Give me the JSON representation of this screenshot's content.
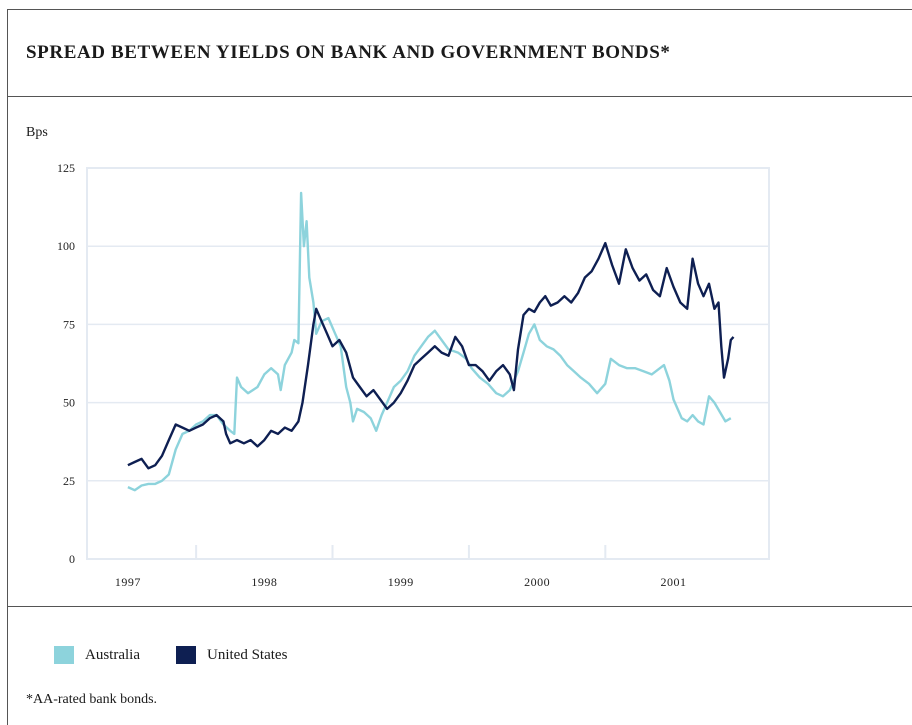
{
  "title": "SPREAD BETWEEN YIELDS ON BANK AND GOVERNMENT BONDS*",
  "unit_label": "Bps",
  "footnote": "*AA-rated bank bonds.",
  "colors": {
    "Australia": "#8dd3dc",
    "United States": "#0e1f52",
    "grid": "#e4eaf2"
  },
  "chart_data": {
    "type": "line",
    "title": "SPREAD BETWEEN YIELDS ON BANK AND GOVERNMENT BONDS*",
    "xlabel": "",
    "ylabel": "Bps",
    "ylim": [
      0,
      125
    ],
    "yticks": [
      0,
      25,
      50,
      75,
      100,
      125
    ],
    "xlim": [
      1996.7,
      2001.7
    ],
    "xticks": [
      1997,
      1998,
      1999,
      2000,
      2001
    ],
    "x_tick_labels": [
      "1997",
      "1998",
      "1999",
      "2000",
      "2001"
    ],
    "grid": true,
    "legend": "bottom-left",
    "series": [
      {
        "name": "Australia",
        "points": [
          [
            1997.0,
            23
          ],
          [
            1997.05,
            22
          ],
          [
            1997.1,
            23.5
          ],
          [
            1997.15,
            24
          ],
          [
            1997.2,
            24
          ],
          [
            1997.25,
            25
          ],
          [
            1997.3,
            27
          ],
          [
            1997.35,
            35
          ],
          [
            1997.4,
            40
          ],
          [
            1997.45,
            41
          ],
          [
            1997.5,
            43
          ],
          [
            1997.55,
            44
          ],
          [
            1997.6,
            46
          ],
          [
            1997.65,
            46
          ],
          [
            1997.7,
            43
          ],
          [
            1997.75,
            41
          ],
          [
            1997.78,
            40
          ],
          [
            1997.8,
            58
          ],
          [
            1997.83,
            55
          ],
          [
            1997.88,
            53
          ],
          [
            1997.95,
            55
          ],
          [
            1998.0,
            59
          ],
          [
            1998.05,
            61
          ],
          [
            1998.1,
            59
          ],
          [
            1998.12,
            54
          ],
          [
            1998.15,
            62
          ],
          [
            1998.2,
            66
          ],
          [
            1998.22,
            70
          ],
          [
            1998.25,
            69
          ],
          [
            1998.27,
            117
          ],
          [
            1998.29,
            100
          ],
          [
            1998.31,
            108
          ],
          [
            1998.33,
            90
          ],
          [
            1998.36,
            82
          ],
          [
            1998.38,
            72
          ],
          [
            1998.42,
            76
          ],
          [
            1998.47,
            77
          ],
          [
            1998.52,
            72
          ],
          [
            1998.56,
            68
          ],
          [
            1998.6,
            55
          ],
          [
            1998.63,
            50
          ],
          [
            1998.65,
            44
          ],
          [
            1998.68,
            48
          ],
          [
            1998.73,
            47
          ],
          [
            1998.78,
            45
          ],
          [
            1998.82,
            41
          ],
          [
            1998.86,
            46
          ],
          [
            1998.9,
            50
          ],
          [
            1998.95,
            55
          ],
          [
            1999.0,
            57
          ],
          [
            1999.05,
            60
          ],
          [
            1999.1,
            65
          ],
          [
            1999.15,
            68
          ],
          [
            1999.2,
            71
          ],
          [
            1999.25,
            73
          ],
          [
            1999.3,
            70
          ],
          [
            1999.35,
            67
          ],
          [
            1999.42,
            66
          ],
          [
            1999.48,
            64
          ],
          [
            1999.52,
            61
          ],
          [
            1999.58,
            58
          ],
          [
            1999.64,
            56
          ],
          [
            1999.7,
            53
          ],
          [
            1999.75,
            52
          ],
          [
            1999.8,
            54
          ],
          [
            1999.86,
            60
          ],
          [
            1999.9,
            66
          ],
          [
            1999.94,
            72
          ],
          [
            1999.98,
            75
          ],
          [
            2000.02,
            70
          ],
          [
            2000.07,
            68
          ],
          [
            2000.12,
            67
          ],
          [
            2000.17,
            65
          ],
          [
            2000.22,
            62
          ],
          [
            2000.27,
            60
          ],
          [
            2000.32,
            58
          ],
          [
            2000.38,
            56
          ],
          [
            2000.44,
            53
          ],
          [
            2000.5,
            56
          ],
          [
            2000.54,
            64
          ],
          [
            2000.6,
            62
          ],
          [
            2000.66,
            61
          ],
          [
            2000.72,
            61
          ],
          [
            2000.78,
            60
          ],
          [
            2000.84,
            59
          ],
          [
            2000.9,
            61
          ],
          [
            2000.93,
            62
          ],
          [
            2000.97,
            57
          ],
          [
            2001.0,
            51
          ],
          [
            2001.03,
            48
          ],
          [
            2001.06,
            45
          ],
          [
            2001.1,
            44
          ],
          [
            2001.14,
            46
          ],
          [
            2001.18,
            44
          ],
          [
            2001.22,
            43
          ],
          [
            2001.26,
            52
          ],
          [
            2001.3,
            50
          ],
          [
            2001.34,
            47
          ],
          [
            2001.38,
            44
          ],
          [
            2001.42,
            45
          ]
        ]
      },
      {
        "name": "United States",
        "points": [
          [
            1997.0,
            30
          ],
          [
            1997.05,
            31
          ],
          [
            1997.1,
            32
          ],
          [
            1997.15,
            29
          ],
          [
            1997.2,
            30
          ],
          [
            1997.25,
            33
          ],
          [
            1997.3,
            38
          ],
          [
            1997.35,
            43
          ],
          [
            1997.4,
            42
          ],
          [
            1997.45,
            41
          ],
          [
            1997.5,
            42
          ],
          [
            1997.55,
            43
          ],
          [
            1997.6,
            45
          ],
          [
            1997.65,
            46
          ],
          [
            1997.7,
            44
          ],
          [
            1997.72,
            40
          ],
          [
            1997.75,
            37
          ],
          [
            1997.8,
            38
          ],
          [
            1997.85,
            37
          ],
          [
            1997.9,
            38
          ],
          [
            1997.95,
            36
          ],
          [
            1998.0,
            38
          ],
          [
            1998.05,
            41
          ],
          [
            1998.1,
            40
          ],
          [
            1998.15,
            42
          ],
          [
            1998.2,
            41
          ],
          [
            1998.25,
            44
          ],
          [
            1998.28,
            50
          ],
          [
            1998.32,
            62
          ],
          [
            1998.36,
            75
          ],
          [
            1998.38,
            80
          ],
          [
            1998.42,
            76
          ],
          [
            1998.46,
            72
          ],
          [
            1998.5,
            68
          ],
          [
            1998.55,
            70
          ],
          [
            1998.6,
            66
          ],
          [
            1998.65,
            58
          ],
          [
            1998.7,
            55
          ],
          [
            1998.75,
            52
          ],
          [
            1998.8,
            54
          ],
          [
            1998.85,
            51
          ],
          [
            1998.9,
            48
          ],
          [
            1998.95,
            50
          ],
          [
            1999.0,
            53
          ],
          [
            1999.05,
            57
          ],
          [
            1999.1,
            62
          ],
          [
            1999.15,
            64
          ],
          [
            1999.2,
            66
          ],
          [
            1999.25,
            68
          ],
          [
            1999.3,
            66
          ],
          [
            1999.35,
            65
          ],
          [
            1999.4,
            71
          ],
          [
            1999.45,
            68
          ],
          [
            1999.5,
            62
          ],
          [
            1999.55,
            62
          ],
          [
            1999.6,
            60
          ],
          [
            1999.65,
            57
          ],
          [
            1999.7,
            60
          ],
          [
            1999.75,
            62
          ],
          [
            1999.8,
            59
          ],
          [
            1999.83,
            54
          ],
          [
            1999.86,
            67
          ],
          [
            1999.9,
            78
          ],
          [
            1999.94,
            80
          ],
          [
            1999.98,
            79
          ],
          [
            2000.02,
            82
          ],
          [
            2000.06,
            84
          ],
          [
            2000.1,
            81
          ],
          [
            2000.15,
            82
          ],
          [
            2000.2,
            84
          ],
          [
            2000.25,
            82
          ],
          [
            2000.3,
            85
          ],
          [
            2000.35,
            90
          ],
          [
            2000.4,
            92
          ],
          [
            2000.45,
            96
          ],
          [
            2000.5,
            101
          ],
          [
            2000.55,
            94
          ],
          [
            2000.6,
            88
          ],
          [
            2000.65,
            99
          ],
          [
            2000.7,
            93
          ],
          [
            2000.75,
            89
          ],
          [
            2000.8,
            91
          ],
          [
            2000.85,
            86
          ],
          [
            2000.9,
            84
          ],
          [
            2000.95,
            93
          ],
          [
            2001.0,
            87
          ],
          [
            2001.05,
            82
          ],
          [
            2001.1,
            80
          ],
          [
            2001.14,
            96
          ],
          [
            2001.18,
            88
          ],
          [
            2001.22,
            84
          ],
          [
            2001.26,
            88
          ],
          [
            2001.3,
            80
          ],
          [
            2001.33,
            82
          ],
          [
            2001.35,
            68
          ],
          [
            2001.37,
            58
          ],
          [
            2001.4,
            64
          ],
          [
            2001.42,
            70
          ],
          [
            2001.44,
            71
          ]
        ]
      }
    ]
  }
}
